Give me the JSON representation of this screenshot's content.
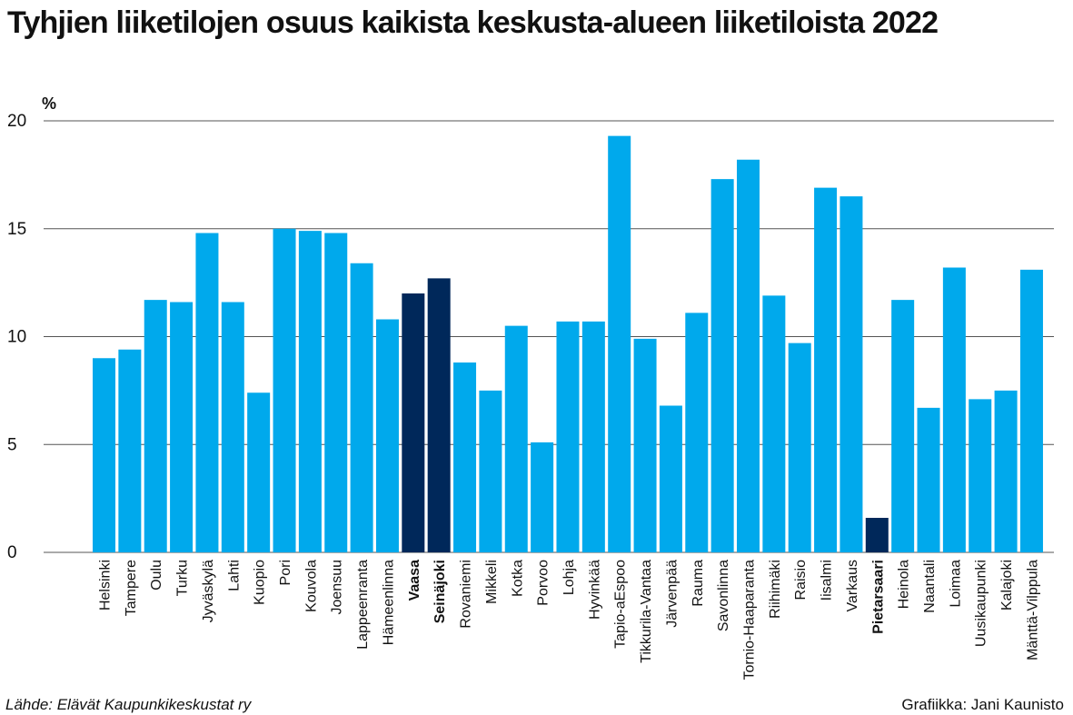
{
  "title": "Tyhjien liiketilojen osuus kaikista keskusta-alueen liiketiloista 2022",
  "unit_label": "%",
  "source": "Lähde: Elävät Kaupunkikeskustat ry",
  "credit": "Grafiikka: Jani Kaunisto",
  "colors": {
    "bar": "#00a9ec",
    "highlight": "#00285a",
    "grid": "#555555"
  },
  "chart_data": {
    "type": "bar",
    "title": "Tyhjien liiketilojen osuus kaikista keskusta-alueen liiketiloista 2022",
    "ylabel": "%",
    "ylim": [
      0,
      20
    ],
    "yticks": [
      0,
      5,
      10,
      15,
      20
    ],
    "grid": true,
    "categories": [
      "Helsinki",
      "Tampere",
      "Oulu",
      "Turku",
      "Jyväskylä",
      "Lahti",
      "Kuopio",
      "Pori",
      "Kouvola",
      "Joensuu",
      "Lappeenranta",
      "Hämeenlinna",
      "Vaasa",
      "Seinäjoki",
      "Rovaniemi",
      "Mikkeli",
      "Kotka",
      "Porvoo",
      "Lohja",
      "Hyvinkää",
      "Tapio-aEspoo",
      "Tikkurila-Vantaa",
      "Järvenpää",
      "Rauma",
      "Savonlinna",
      "Tornio-Haaparanta",
      "Riihimäki",
      "Raisio",
      "Iisalmi",
      "Varkaus",
      "Pietarsaari",
      "Heinola",
      "Naantali",
      "Loimaa",
      "Uusikaupunki",
      "Kalajoki",
      "Mänttä-Vilppula"
    ],
    "values": [
      9.0,
      9.4,
      11.7,
      11.6,
      14.8,
      11.6,
      7.4,
      15.0,
      14.9,
      14.8,
      13.4,
      10.8,
      12.0,
      12.7,
      8.8,
      7.5,
      10.5,
      5.1,
      10.7,
      10.7,
      19.3,
      9.9,
      6.8,
      11.1,
      17.3,
      18.2,
      11.9,
      9.7,
      16.9,
      16.5,
      1.6,
      11.7,
      6.7,
      13.2,
      7.1,
      7.5,
      13.1
    ],
    "highlighted": [
      "Vaasa",
      "Seinäjoki",
      "Pietarsaari"
    ]
  }
}
